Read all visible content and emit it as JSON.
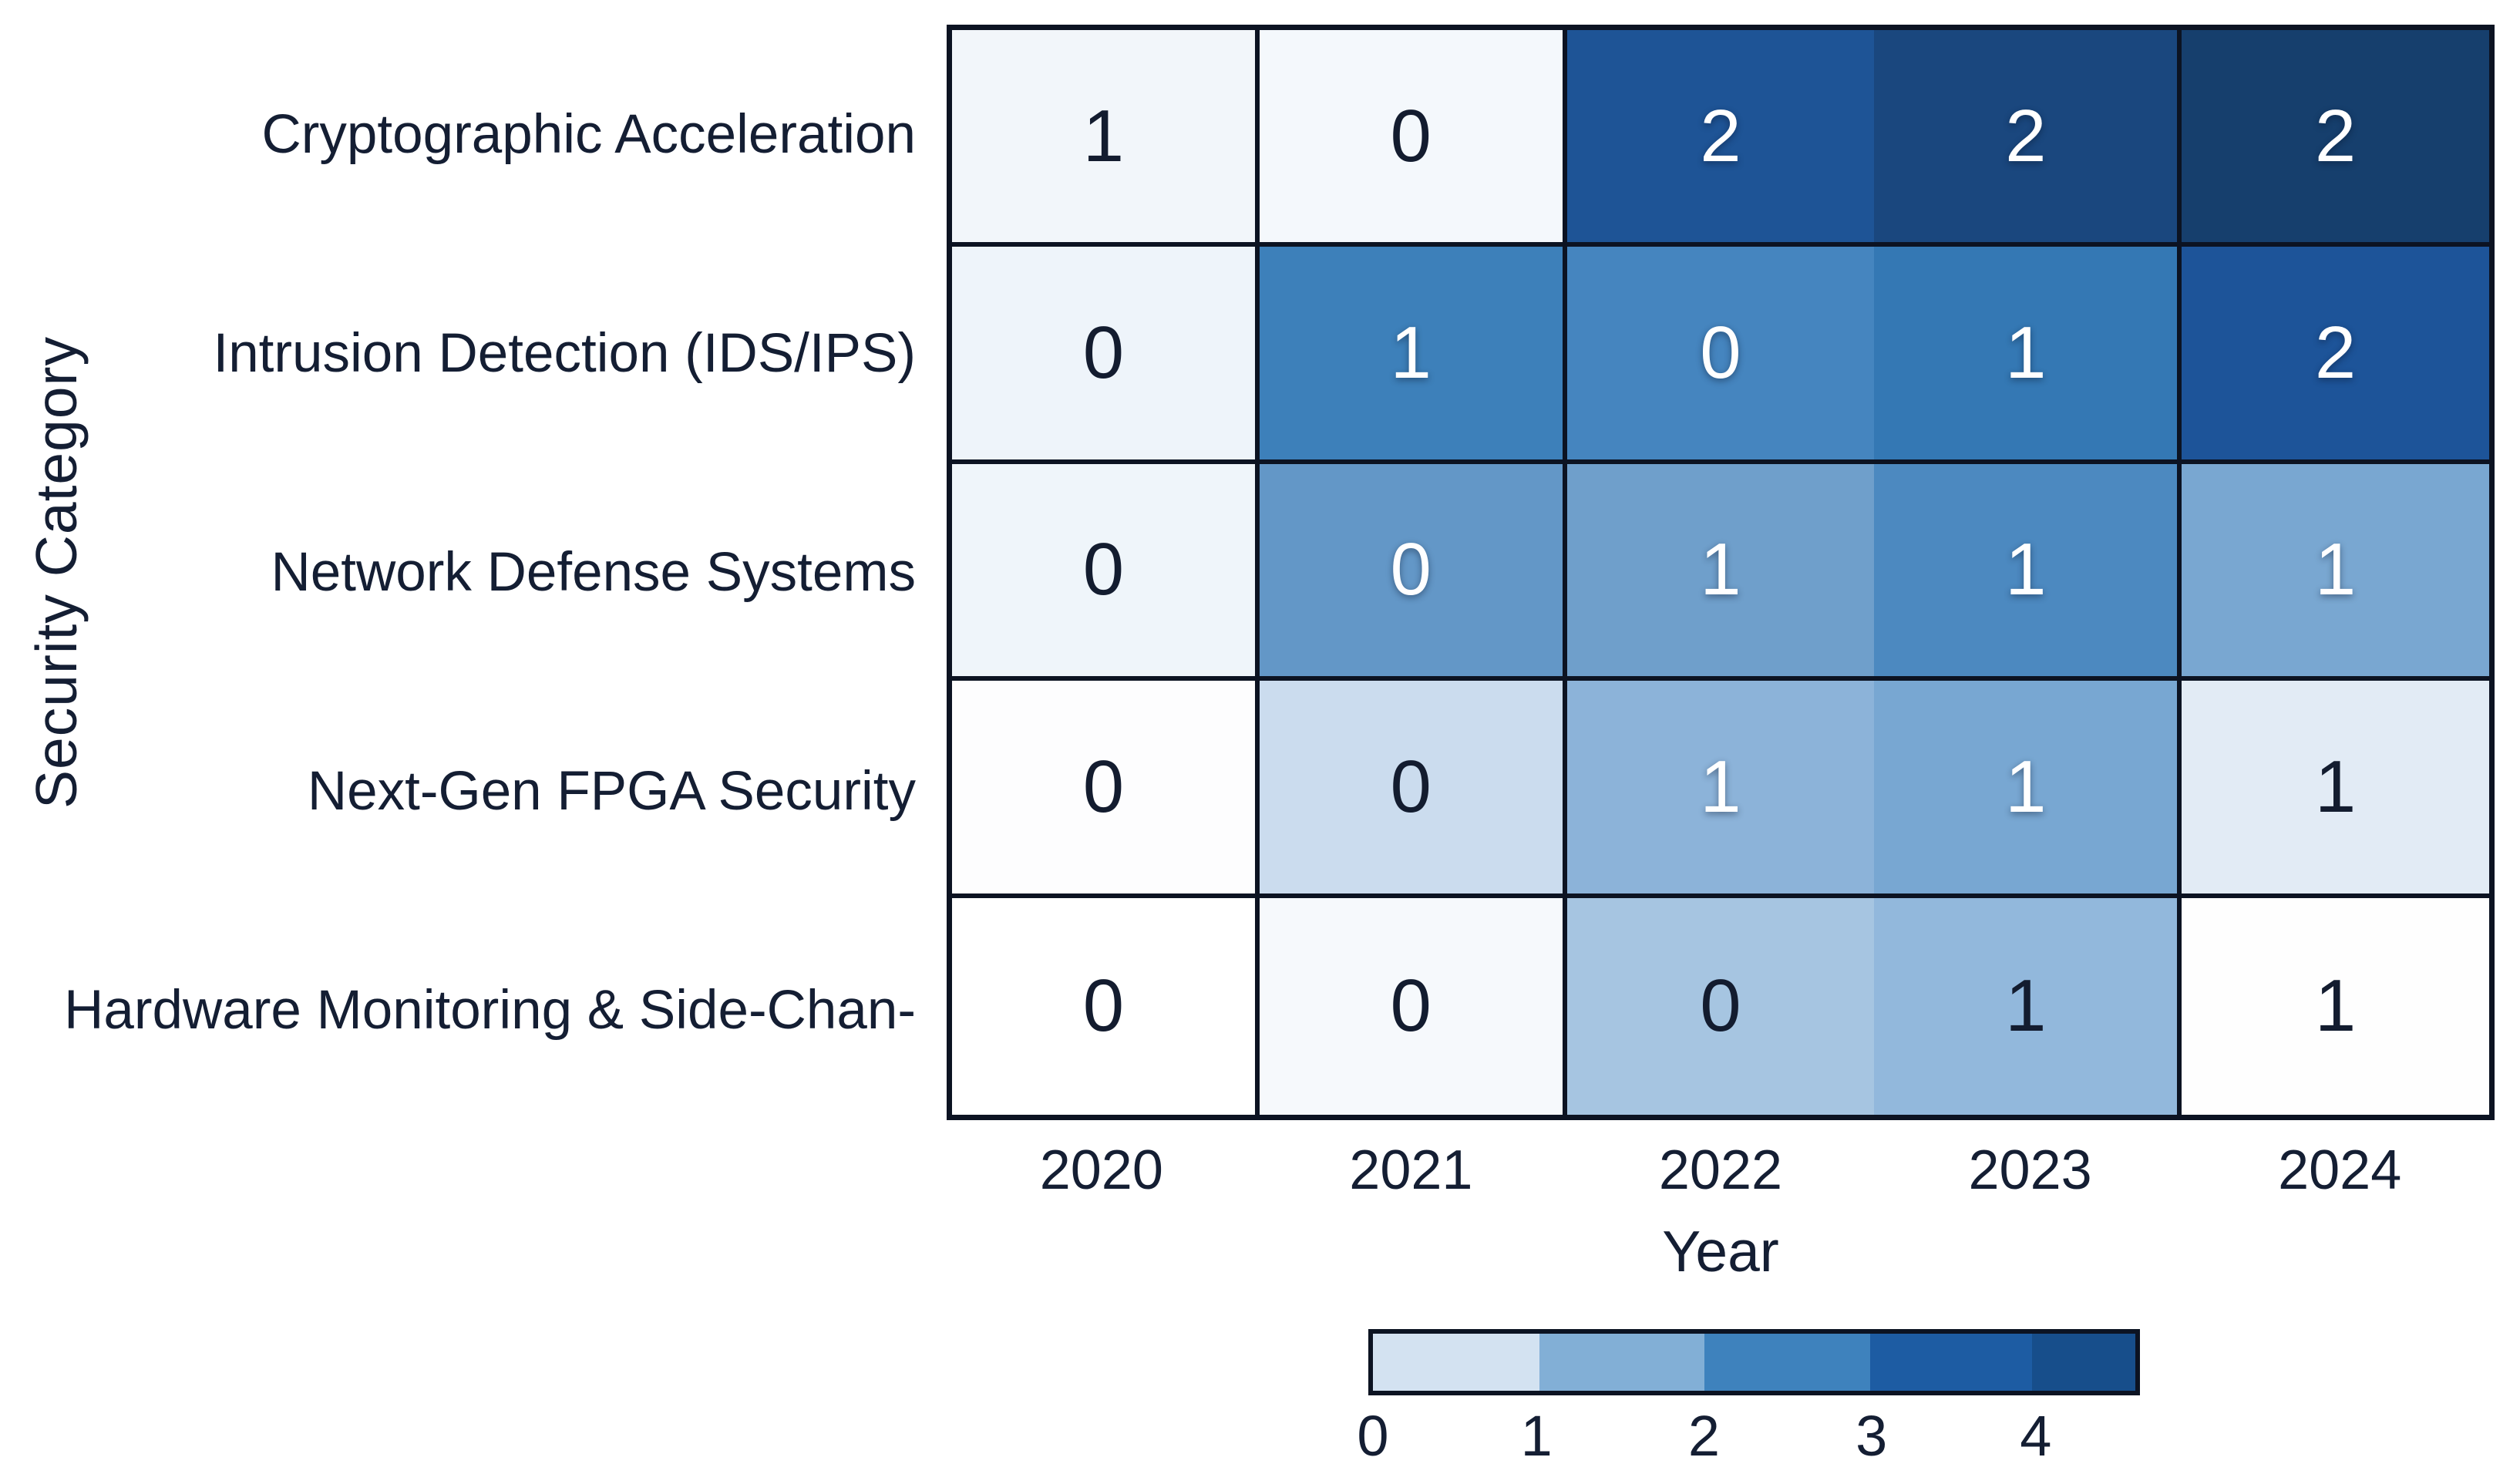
{
  "chart_data": {
    "type": "heatmap",
    "xlabel": "Year",
    "ylabel": "Security Category",
    "columns": [
      "2020",
      "2021",
      "2022",
      "2023",
      "2024"
    ],
    "rows": [
      "Cryptographic Acceleration",
      "Intrusion Detection (IDS/IPS)",
      "Network Defense Systems",
      "Next-Gen FPGA Security",
      "Hardware Monitoring & Side-Chan-"
    ],
    "values": [
      [
        1,
        0,
        2,
        2,
        2
      ],
      [
        0,
        1,
        0,
        1,
        2
      ],
      [
        0,
        0,
        1,
        1,
        1
      ],
      [
        0,
        0,
        1,
        1,
        1
      ],
      [
        0,
        0,
        0,
        1,
        1
      ]
    ],
    "cell_colors": [
      [
        "#f2f6fa",
        "#f4f8fc",
        "#1e5496",
        "#1a477e",
        "#163f6d"
      ],
      [
        "#eef4fa",
        "#3d80ba",
        "#4585bf",
        "#3478b4",
        "#1d5499"
      ],
      [
        "#eff5fa",
        "#6397c7",
        "#6f9fcb",
        "#4c89c0",
        "#79a7d1"
      ],
      [
        "#fdfdfe",
        "#cbdcee",
        "#8cb3d9",
        "#78a7d2",
        "#e2ebf5"
      ],
      [
        "#ffffff",
        "#f6f9fc",
        "#a6c5e1",
        "#92b8dc",
        "#fefefe"
      ]
    ],
    "cell_text_tones": [
      [
        "dark",
        "dark",
        "light",
        "light",
        "light"
      ],
      [
        "dark",
        "light",
        "light",
        "light",
        "light"
      ],
      [
        "dark",
        "light",
        "light",
        "light",
        "light"
      ],
      [
        "dark",
        "dark",
        "light",
        "light",
        "dark"
      ],
      [
        "dark",
        "dark",
        "dark",
        "dark",
        "dark"
      ]
    ],
    "grid": {
      "missing_vertical_line_after_column": "2022"
    },
    "colorbar": {
      "ticks": [
        "0",
        "1",
        "2",
        "3",
        "4"
      ],
      "tick_positions": [
        0.006,
        0.218,
        0.435,
        0.652,
        0.865
      ],
      "segment_colors": [
        "#d3e2f1",
        "#82afd6",
        "#3e82bd",
        "#1d5ca3",
        "#174e8b"
      ],
      "segment_widths": [
        0.218,
        0.217,
        0.217,
        0.213,
        0.135
      ],
      "range": [
        0,
        4
      ]
    },
    "value_range_shown": [
      0,
      2
    ]
  },
  "colors": {
    "text": "#141e33",
    "grid_line": "#0c1322",
    "background": "#ffffff",
    "value_light_text": "#ffffff",
    "value_dark_text": "#131c2f"
  }
}
